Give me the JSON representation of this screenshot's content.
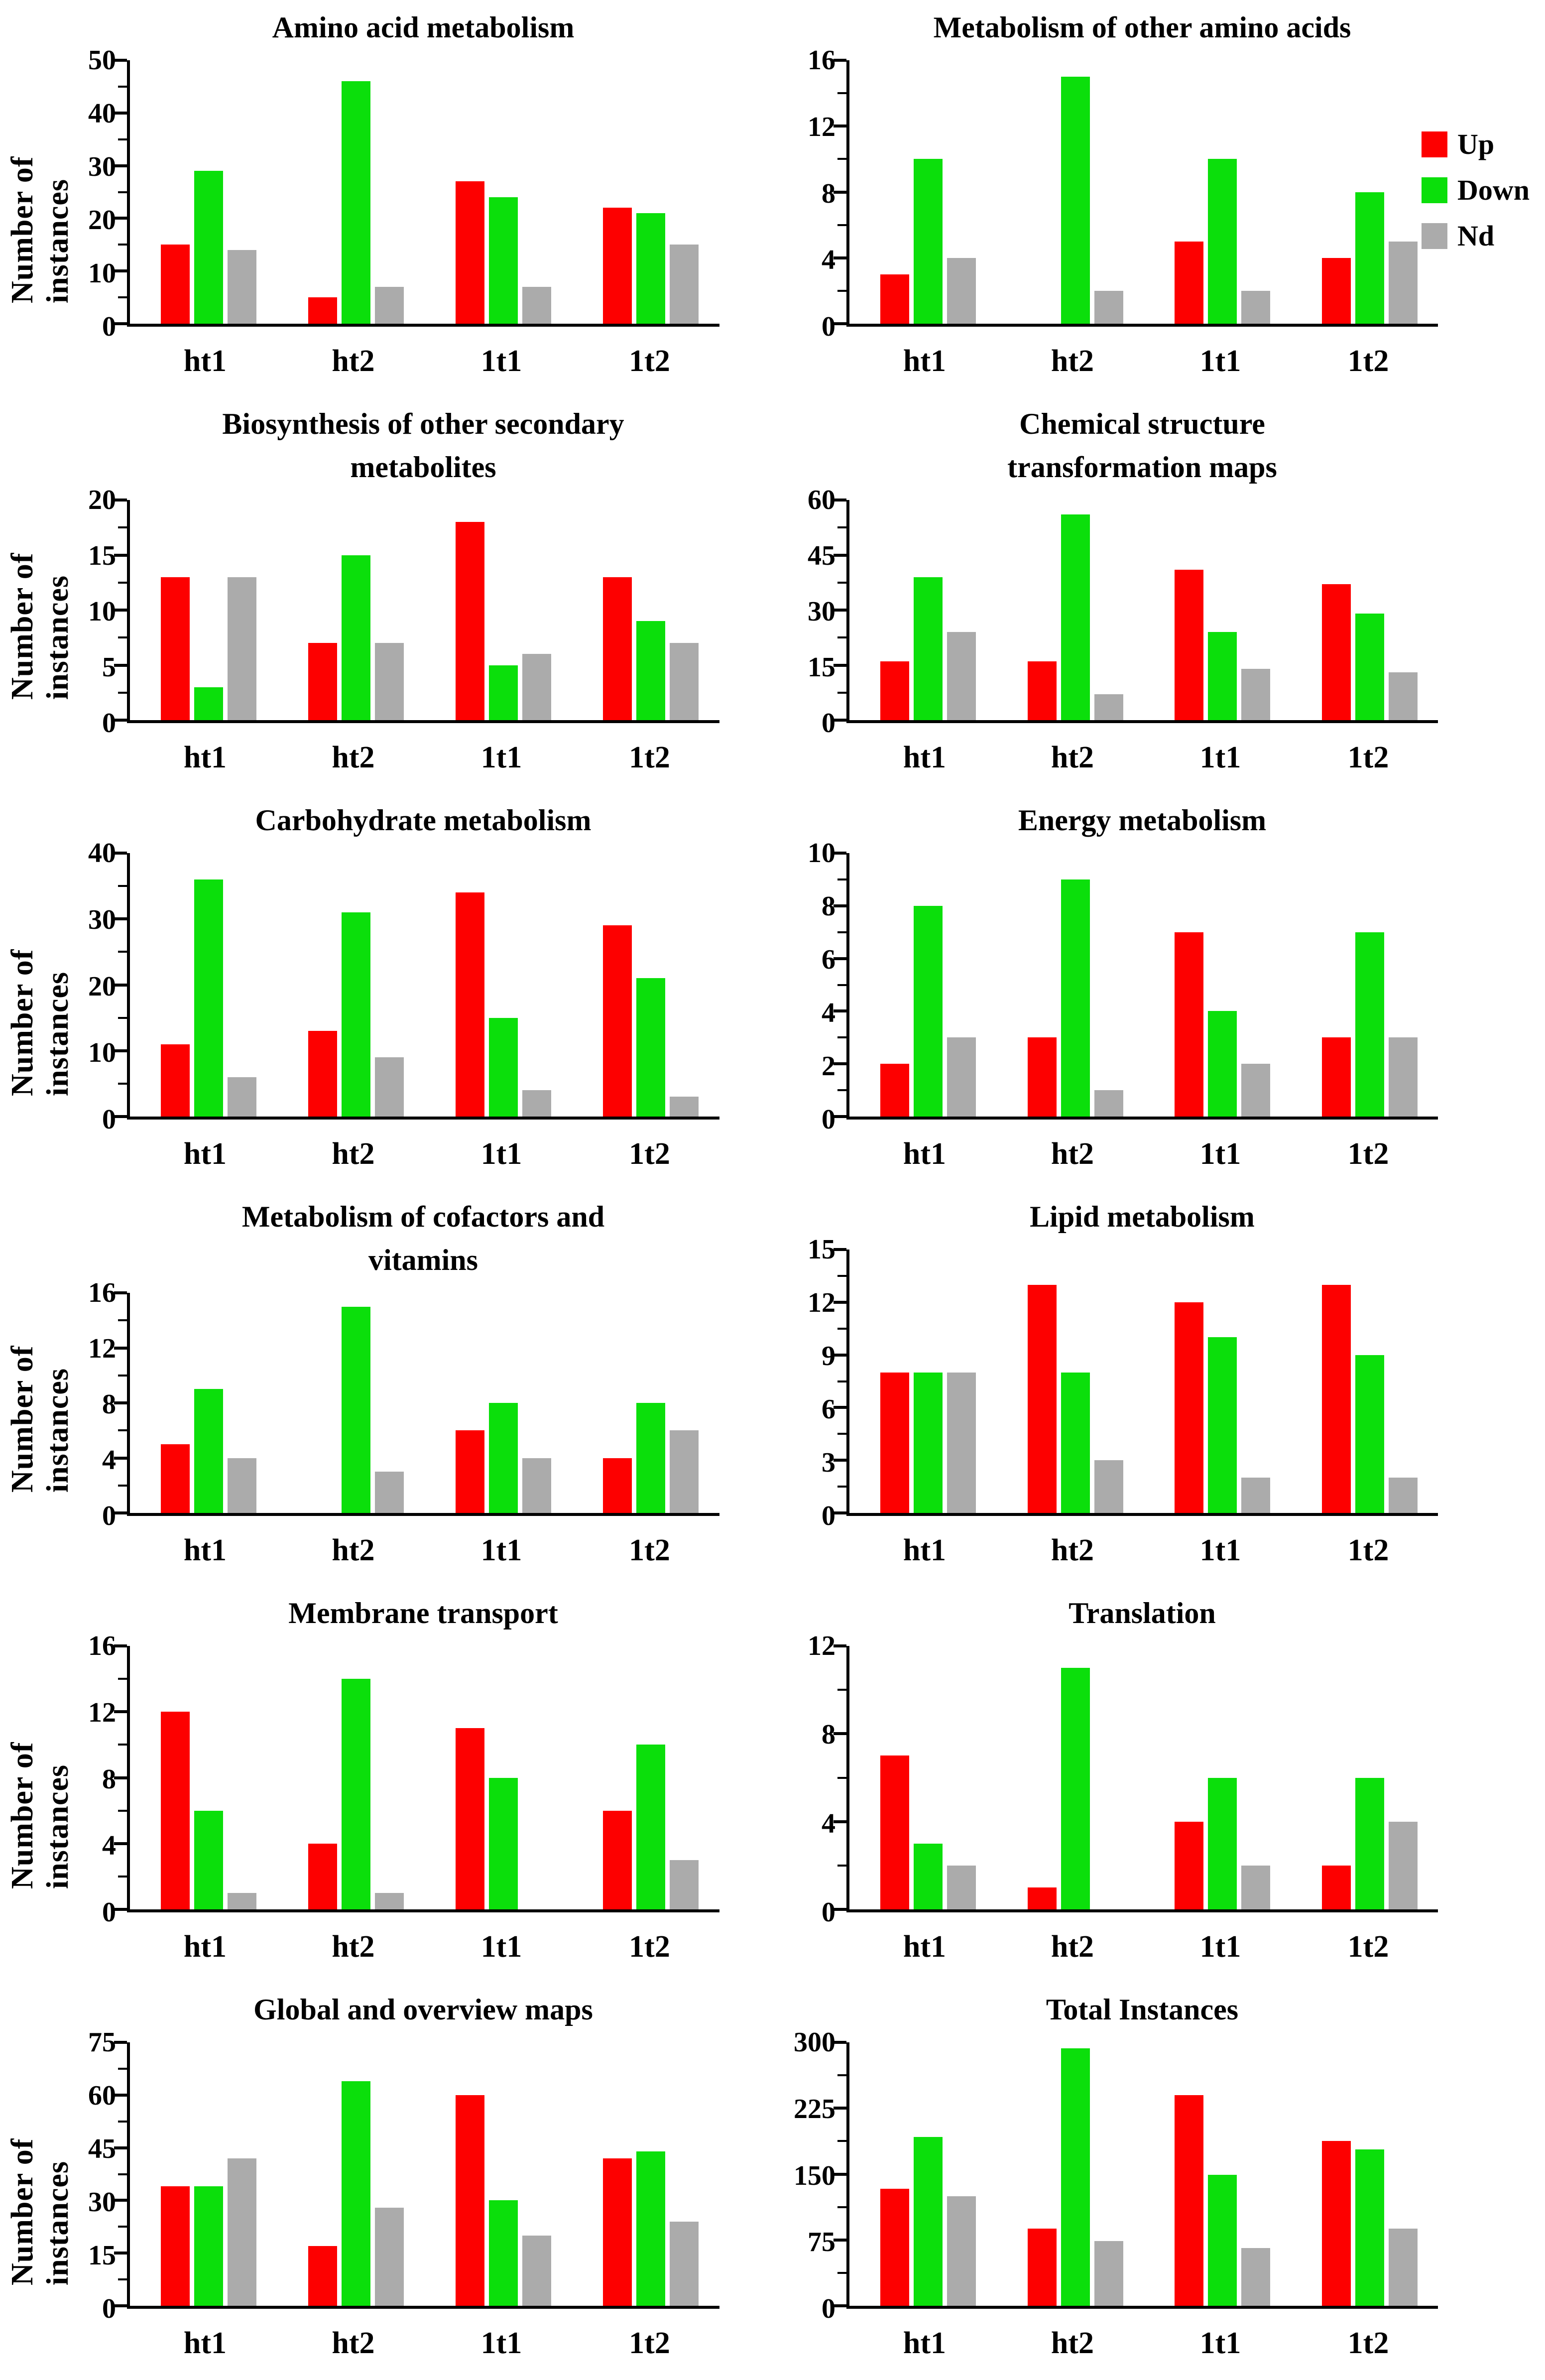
{
  "page": {
    "background": "#ffffff"
  },
  "y_axis_label": "Number of instances",
  "categories": [
    "ht1",
    "ht2",
    "1t1",
    "1t2"
  ],
  "legend": {
    "position": "top-right",
    "items": [
      {
        "label": "Up",
        "color": "#fd0000"
      },
      {
        "label": "Down",
        "color": "#0bdf0b"
      },
      {
        "label": "Nd",
        "color": "#ababab"
      }
    ]
  },
  "chart_data": [
    {
      "type": "bar",
      "title": "Amino acid metabolism",
      "ylabel": "Number of instances",
      "ylim": [
        0,
        50
      ],
      "ytick_step": 10,
      "grid": false,
      "categories": [
        "ht1",
        "ht2",
        "1t1",
        "1t2"
      ],
      "series": [
        {
          "name": "Up",
          "values": [
            15,
            5,
            27,
            22
          ]
        },
        {
          "name": "Down",
          "values": [
            29,
            46,
            24,
            21
          ]
        },
        {
          "name": "Nd",
          "values": [
            14,
            7,
            7,
            15
          ]
        }
      ]
    },
    {
      "type": "bar",
      "title": "Metabolism of other amino acids",
      "ylabel": "",
      "ylim": [
        0,
        16
      ],
      "ytick_step": 4,
      "grid": false,
      "categories": [
        "ht1",
        "ht2",
        "1t1",
        "1t2"
      ],
      "series": [
        {
          "name": "Up",
          "values": [
            3,
            0,
            5,
            4
          ]
        },
        {
          "name": "Down",
          "values": [
            10,
            15,
            10,
            8
          ]
        },
        {
          "name": "Nd",
          "values": [
            4,
            2,
            2,
            5
          ]
        }
      ]
    },
    {
      "type": "bar",
      "title": "Biosynthesis of other secondary\nmetabolites",
      "ylabel": "Number of instances",
      "ylim": [
        0,
        20
      ],
      "ytick_step": 5,
      "grid": false,
      "categories": [
        "ht1",
        "ht2",
        "1t1",
        "1t2"
      ],
      "series": [
        {
          "name": "Up",
          "values": [
            13,
            7,
            18,
            13
          ]
        },
        {
          "name": "Down",
          "values": [
            3,
            15,
            5,
            9
          ]
        },
        {
          "name": "Nd",
          "values": [
            13,
            7,
            6,
            7
          ]
        }
      ]
    },
    {
      "type": "bar",
      "title": "Chemical structure\ntransformation maps",
      "ylabel": "",
      "ylim": [
        0,
        60
      ],
      "ytick_step": 15,
      "grid": false,
      "categories": [
        "ht1",
        "ht2",
        "1t1",
        "1t2"
      ],
      "series": [
        {
          "name": "Up",
          "values": [
            16,
            16,
            41,
            37
          ]
        },
        {
          "name": "Down",
          "values": [
            39,
            56,
            24,
            29
          ]
        },
        {
          "name": "Nd",
          "values": [
            24,
            7,
            14,
            13
          ]
        }
      ]
    },
    {
      "type": "bar",
      "title": "Carbohydrate metabolism",
      "ylabel": "Number of instances",
      "ylim": [
        0,
        40
      ],
      "ytick_step": 10,
      "grid": false,
      "categories": [
        "ht1",
        "ht2",
        "1t1",
        "1t2"
      ],
      "series": [
        {
          "name": "Up",
          "values": [
            11,
            13,
            34,
            29
          ]
        },
        {
          "name": "Down",
          "values": [
            36,
            31,
            15,
            21
          ]
        },
        {
          "name": "Nd",
          "values": [
            6,
            9,
            4,
            3
          ]
        }
      ]
    },
    {
      "type": "bar",
      "title": "Energy metabolism",
      "ylabel": "",
      "ylim": [
        0,
        10
      ],
      "ytick_step": 2,
      "grid": false,
      "categories": [
        "ht1",
        "ht2",
        "1t1",
        "1t2"
      ],
      "series": [
        {
          "name": "Up",
          "values": [
            2,
            3,
            7,
            3
          ]
        },
        {
          "name": "Down",
          "values": [
            8,
            9,
            4,
            7
          ]
        },
        {
          "name": "Nd",
          "values": [
            3,
            1,
            2,
            3
          ]
        }
      ]
    },
    {
      "type": "bar",
      "title": "Metabolism of cofactors and\nvitamins",
      "ylabel": "Number of instances",
      "ylim": [
        0,
        16
      ],
      "ytick_step": 4,
      "grid": false,
      "categories": [
        "ht1",
        "ht2",
        "1t1",
        "1t2"
      ],
      "series": [
        {
          "name": "Up",
          "values": [
            5,
            0,
            6,
            4
          ]
        },
        {
          "name": "Down",
          "values": [
            9,
            15,
            8,
            8
          ]
        },
        {
          "name": "Nd",
          "values": [
            4,
            3,
            4,
            6
          ]
        }
      ]
    },
    {
      "type": "bar",
      "title": "Lipid metabolism",
      "ylabel": "",
      "ylim": [
        0,
        15
      ],
      "ytick_step": 3,
      "grid": false,
      "categories": [
        "ht1",
        "ht2",
        "1t1",
        "1t2"
      ],
      "series": [
        {
          "name": "Up",
          "values": [
            8,
            13,
            12,
            13
          ]
        },
        {
          "name": "Down",
          "values": [
            8,
            8,
            10,
            9
          ]
        },
        {
          "name": "Nd",
          "values": [
            8,
            3,
            2,
            2
          ]
        }
      ]
    },
    {
      "type": "bar",
      "title": "Membrane transport",
      "ylabel": "Number of instances",
      "ylim": [
        0,
        16
      ],
      "ytick_step": 4,
      "grid": false,
      "categories": [
        "ht1",
        "ht2",
        "1t1",
        "1t2"
      ],
      "series": [
        {
          "name": "Up",
          "values": [
            12,
            4,
            11,
            6
          ]
        },
        {
          "name": "Down",
          "values": [
            6,
            14,
            8,
            10
          ]
        },
        {
          "name": "Nd",
          "values": [
            1,
            1,
            0,
            3
          ]
        }
      ]
    },
    {
      "type": "bar",
      "title": "Translation",
      "ylabel": "",
      "ylim": [
        0,
        12
      ],
      "ytick_step": 4,
      "grid": false,
      "categories": [
        "ht1",
        "ht2",
        "1t1",
        "1t2"
      ],
      "series": [
        {
          "name": "Up",
          "values": [
            7,
            1,
            4,
            2
          ]
        },
        {
          "name": "Down",
          "values": [
            3,
            11,
            6,
            6
          ]
        },
        {
          "name": "Nd",
          "values": [
            2,
            0,
            2,
            4
          ]
        }
      ]
    },
    {
      "type": "bar",
      "title": "Global and overview maps",
      "ylabel": "Number of instances",
      "ylim": [
        0,
        75
      ],
      "ytick_step": 15,
      "grid": false,
      "categories": [
        "ht1",
        "ht2",
        "1t1",
        "1t2"
      ],
      "series": [
        {
          "name": "Up",
          "values": [
            34,
            17,
            60,
            42
          ]
        },
        {
          "name": "Down",
          "values": [
            34,
            64,
            30,
            44
          ]
        },
        {
          "name": "Nd",
          "values": [
            42,
            28,
            20,
            24
          ]
        }
      ]
    },
    {
      "type": "bar",
      "title": "Total Instances",
      "ylabel": "",
      "ylim": [
        0,
        300
      ],
      "ytick_step": 75,
      "grid": false,
      "categories": [
        "ht1",
        "ht2",
        "1t1",
        "1t2"
      ],
      "series": [
        {
          "name": "Up",
          "values": [
            133,
            88,
            240,
            188
          ]
        },
        {
          "name": "Down",
          "values": [
            192,
            293,
            149,
            178
          ]
        },
        {
          "name": "Nd",
          "values": [
            125,
            74,
            66,
            88
          ]
        }
      ]
    }
  ]
}
